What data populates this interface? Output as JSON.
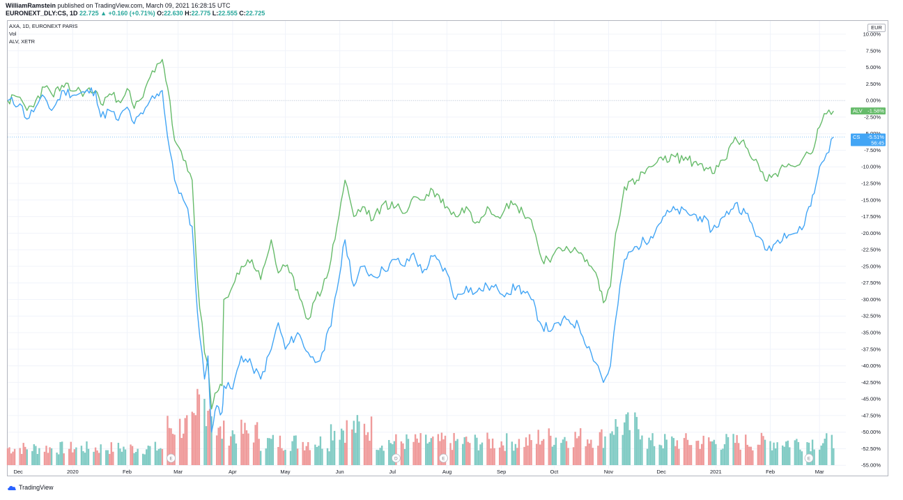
{
  "header": {
    "author": "WilliamRamstein",
    "published": "published on TradingView.com, March 09, 2021 16:28:15 UTC",
    "symbol": "EURONEXT_DLY:CS, 1D",
    "last": "22.725",
    "change": "+0.160 (+0.71%)",
    "open_label": "O:",
    "open": "22.630",
    "high_label": "H:",
    "high": "22.775",
    "low_label": "L:",
    "low": "22.555",
    "close_label": "C:",
    "close": "22.725"
  },
  "legend": [
    "AXA, 1D, EURONEXT PARIS",
    "Vol",
    "ALV, XETR"
  ],
  "currency_button": "EUR",
  "branding": "TradingView",
  "chart_data": {
    "type": "line",
    "y_unit": "%",
    "y_range": [
      -55.5,
      12
    ],
    "y_ticks": [
      10,
      7.5,
      5,
      2.5,
      0,
      -2.5,
      -5,
      -7.5,
      -10,
      -12.5,
      -15,
      -17.5,
      -20,
      -22.5,
      -25,
      -27.5,
      -30,
      -32.5,
      -35,
      -37.5,
      -40,
      -42.5,
      -45,
      -47.5,
      -50,
      -52.5,
      -55
    ],
    "x_range": [
      "2019-11-25",
      "2021-03-16"
    ],
    "x_ticks": [
      {
        "label": "Dec",
        "date": "2019-12-01"
      },
      {
        "label": "2020",
        "date": "2020-01-01"
      },
      {
        "label": "Feb",
        "date": "2020-02-01"
      },
      {
        "label": "Mar",
        "date": "2020-03-01"
      },
      {
        "label": "Apr",
        "date": "2020-04-01"
      },
      {
        "label": "May",
        "date": "2020-05-01"
      },
      {
        "label": "Jun",
        "date": "2020-06-01"
      },
      {
        "label": "Jul",
        "date": "2020-07-01"
      },
      {
        "label": "Aug",
        "date": "2020-08-01"
      },
      {
        "label": "Sep",
        "date": "2020-09-01"
      },
      {
        "label": "Oct",
        "date": "2020-10-01"
      },
      {
        "label": "Nov",
        "date": "2020-11-01"
      },
      {
        "label": "Dec",
        "date": "2020-12-01"
      },
      {
        "label": "2021",
        "date": "2021-01-01"
      },
      {
        "label": "Feb",
        "date": "2021-02-01"
      },
      {
        "label": "Mar",
        "date": "2021-03-01"
      }
    ],
    "series": [
      {
        "name": "CS",
        "color": "#42a5f5",
        "last_label": "-5.51%",
        "countdown": "56:45",
        "points": [
          [
            "2019-11-25",
            0
          ],
          [
            "2019-12-02",
            -0.5
          ],
          [
            "2019-12-06",
            -2.8
          ],
          [
            "2019-12-11",
            -1
          ],
          [
            "2019-12-16",
            0.5
          ],
          [
            "2019-12-20",
            -1.5
          ],
          [
            "2019-12-27",
            1.5
          ],
          [
            "2020-01-03",
            0.8
          ],
          [
            "2020-01-08",
            1.2
          ],
          [
            "2020-01-14",
            1.5
          ],
          [
            "2020-01-17",
            -2.5
          ],
          [
            "2020-01-22",
            -1.5
          ],
          [
            "2020-01-27",
            -3
          ],
          [
            "2020-02-01",
            -1
          ],
          [
            "2020-02-05",
            -3.5
          ],
          [
            "2020-02-10",
            -2
          ],
          [
            "2020-02-14",
            0
          ],
          [
            "2020-02-18",
            1
          ],
          [
            "2020-02-21",
            1.5
          ],
          [
            "2020-02-24",
            -5.5
          ],
          [
            "2020-02-28",
            -12
          ],
          [
            "2020-03-04",
            -15
          ],
          [
            "2020-03-09",
            -19
          ],
          [
            "2020-03-12",
            -32
          ],
          [
            "2020-03-16",
            -42
          ],
          [
            "2020-03-18",
            -38.5
          ],
          [
            "2020-03-20",
            -50
          ],
          [
            "2020-03-23",
            -46
          ],
          [
            "2020-03-26",
            -47
          ],
          [
            "2020-03-27",
            -43
          ],
          [
            "2020-04-01",
            -43.5
          ],
          [
            "2020-04-06",
            -38.5
          ],
          [
            "2020-04-12",
            -40
          ],
          [
            "2020-04-17",
            -42
          ],
          [
            "2020-04-23",
            -37.5
          ],
          [
            "2020-04-27",
            -33.5
          ],
          [
            "2020-05-01",
            -37.5
          ],
          [
            "2020-05-08",
            -35
          ],
          [
            "2020-05-14",
            -38
          ],
          [
            "2020-05-18",
            -39.5
          ],
          [
            "2020-05-22",
            -38
          ],
          [
            "2020-05-27",
            -34
          ],
          [
            "2020-06-04",
            -21
          ],
          [
            "2020-06-09",
            -28
          ],
          [
            "2020-06-14",
            -25
          ],
          [
            "2020-06-20",
            -26.5
          ],
          [
            "2020-06-26",
            -25.5
          ],
          [
            "2020-07-03",
            -24
          ],
          [
            "2020-07-08",
            -25
          ],
          [
            "2020-07-13",
            -23
          ],
          [
            "2020-07-18",
            -26
          ],
          [
            "2020-07-24",
            -23.5
          ],
          [
            "2020-08-01",
            -26
          ],
          [
            "2020-08-06",
            -30
          ],
          [
            "2020-08-12",
            -28
          ],
          [
            "2020-08-17",
            -29
          ],
          [
            "2020-08-24",
            -28
          ],
          [
            "2020-08-30",
            -28.5
          ],
          [
            "2020-09-04",
            -29
          ],
          [
            "2020-09-10",
            -28
          ],
          [
            "2020-09-18",
            -30
          ],
          [
            "2020-09-24",
            -34
          ],
          [
            "2020-09-30",
            -34.5
          ],
          [
            "2020-10-08",
            -33
          ],
          [
            "2020-10-15",
            -34
          ],
          [
            "2020-10-22",
            -38
          ],
          [
            "2020-10-26",
            -40
          ],
          [
            "2020-10-29",
            -42.5
          ],
          [
            "2020-11-02",
            -40
          ],
          [
            "2020-11-05",
            -33
          ],
          [
            "2020-11-10",
            -24
          ],
          [
            "2020-11-17",
            -22
          ],
          [
            "2020-11-25",
            -20.5
          ],
          [
            "2020-12-02",
            -17.5
          ],
          [
            "2020-12-09",
            -16.5
          ],
          [
            "2020-12-16",
            -17
          ],
          [
            "2020-12-23",
            -17.5
          ],
          [
            "2020-12-30",
            -19.5
          ],
          [
            "2021-01-06",
            -17.5
          ],
          [
            "2021-01-12",
            -15.5
          ],
          [
            "2021-01-18",
            -17
          ],
          [
            "2021-01-25",
            -20.5
          ],
          [
            "2021-01-29",
            -22.5
          ],
          [
            "2021-02-04",
            -21.5
          ],
          [
            "2021-02-09",
            -20
          ],
          [
            "2021-02-15",
            -20
          ],
          [
            "2021-02-19",
            -19.5
          ],
          [
            "2021-02-23",
            -16
          ],
          [
            "2021-02-26",
            -14
          ],
          [
            "2021-03-01",
            -10
          ],
          [
            "2021-03-05",
            -8
          ],
          [
            "2021-03-09",
            -5.51
          ]
        ]
      },
      {
        "name": "ALV",
        "color": "#66bb6a",
        "last_label": "-1.58%",
        "points": [
          [
            "2019-11-25",
            0
          ],
          [
            "2019-12-02",
            0.5
          ],
          [
            "2019-12-06",
            -1.5
          ],
          [
            "2019-12-11",
            0
          ],
          [
            "2019-12-16",
            2
          ],
          [
            "2019-12-20",
            1
          ],
          [
            "2019-12-27",
            2
          ],
          [
            "2020-01-03",
            1.5
          ],
          [
            "2020-01-08",
            1.3
          ],
          [
            "2020-01-14",
            1.5
          ],
          [
            "2020-01-17",
            -0.5
          ],
          [
            "2020-01-22",
            1
          ],
          [
            "2020-01-27",
            0
          ],
          [
            "2020-02-01",
            1.8
          ],
          [
            "2020-02-05",
            -1.2
          ],
          [
            "2020-02-10",
            0.5
          ],
          [
            "2020-02-14",
            3.5
          ],
          [
            "2020-02-18",
            5.5
          ],
          [
            "2020-02-21",
            6.2
          ],
          [
            "2020-02-24",
            2
          ],
          [
            "2020-02-28",
            -6
          ],
          [
            "2020-03-04",
            -9
          ],
          [
            "2020-03-09",
            -12
          ],
          [
            "2020-03-12",
            -27
          ],
          [
            "2020-03-16",
            -38
          ],
          [
            "2020-03-18",
            -40
          ],
          [
            "2020-03-20",
            -46.5
          ],
          [
            "2020-03-23",
            -44
          ],
          [
            "2020-03-26",
            -43
          ],
          [
            "2020-03-27",
            -30
          ],
          [
            "2020-04-01",
            -28
          ],
          [
            "2020-04-06",
            -25
          ],
          [
            "2020-04-12",
            -24
          ],
          [
            "2020-04-17",
            -27
          ],
          [
            "2020-04-23",
            -21
          ],
          [
            "2020-04-27",
            -26
          ],
          [
            "2020-05-01",
            -25
          ],
          [
            "2020-05-08",
            -28.5
          ],
          [
            "2020-05-14",
            -33
          ],
          [
            "2020-05-18",
            -30
          ],
          [
            "2020-05-22",
            -28.5
          ],
          [
            "2020-05-27",
            -24
          ],
          [
            "2020-06-04",
            -12
          ],
          [
            "2020-06-09",
            -17.5
          ],
          [
            "2020-06-14",
            -16
          ],
          [
            "2020-06-20",
            -18
          ],
          [
            "2020-06-26",
            -15.5
          ],
          [
            "2020-07-03",
            -16
          ],
          [
            "2020-07-08",
            -17
          ],
          [
            "2020-07-13",
            -14.5
          ],
          [
            "2020-07-18",
            -15
          ],
          [
            "2020-07-24",
            -13.5
          ],
          [
            "2020-08-01",
            -16
          ],
          [
            "2020-08-06",
            -17.5
          ],
          [
            "2020-08-12",
            -16
          ],
          [
            "2020-08-17",
            -18.5
          ],
          [
            "2020-08-24",
            -16
          ],
          [
            "2020-08-30",
            -17.5
          ],
          [
            "2020-09-04",
            -15.5
          ],
          [
            "2020-09-10",
            -16
          ],
          [
            "2020-09-18",
            -18
          ],
          [
            "2020-09-24",
            -24
          ],
          [
            "2020-09-30",
            -23.5
          ],
          [
            "2020-10-08",
            -22
          ],
          [
            "2020-10-15",
            -23
          ],
          [
            "2020-10-22",
            -25
          ],
          [
            "2020-10-26",
            -27
          ],
          [
            "2020-10-29",
            -30.5
          ],
          [
            "2020-11-02",
            -28
          ],
          [
            "2020-11-05",
            -20
          ],
          [
            "2020-11-10",
            -13
          ],
          [
            "2020-11-17",
            -12
          ],
          [
            "2020-11-25",
            -10
          ],
          [
            "2020-12-02",
            -9
          ],
          [
            "2020-12-09",
            -8.5
          ],
          [
            "2020-12-16",
            -9
          ],
          [
            "2020-12-23",
            -9.5
          ],
          [
            "2020-12-30",
            -11
          ],
          [
            "2021-01-06",
            -9
          ],
          [
            "2021-01-12",
            -5.5
          ],
          [
            "2021-01-18",
            -7
          ],
          [
            "2021-01-25",
            -9.5
          ],
          [
            "2021-01-29",
            -12
          ],
          [
            "2021-02-04",
            -11
          ],
          [
            "2021-02-09",
            -10
          ],
          [
            "2021-02-15",
            -10
          ],
          [
            "2021-02-19",
            -9
          ],
          [
            "2021-02-23",
            -8
          ],
          [
            "2021-02-26",
            -7
          ],
          [
            "2021-03-01",
            -4
          ],
          [
            "2021-03-05",
            -2
          ],
          [
            "2021-03-09",
            -1.58
          ]
        ]
      }
    ],
    "volume": {
      "name": "Vol",
      "up_color": "#80cbc4",
      "down_color": "#ef9a9a",
      "note": "relative volume levels (0-1) in chronological segments",
      "segments": [
        {
          "from": "2019-11-25",
          "to": "2020-02-20",
          "level": 0.22
        },
        {
          "from": "2020-02-21",
          "to": "2020-03-10",
          "level": 0.5
        },
        {
          "from": "2020-03-11",
          "to": "2020-03-20",
          "level": 0.82
        },
        {
          "from": "2020-03-21",
          "to": "2020-04-15",
          "level": 0.42
        },
        {
          "from": "2020-04-16",
          "to": "2020-05-25",
          "level": 0.3
        },
        {
          "from": "2020-05-26",
          "to": "2020-06-20",
          "level": 0.48
        },
        {
          "from": "2020-06-21",
          "to": "2020-09-20",
          "level": 0.3
        },
        {
          "from": "2020-09-21",
          "to": "2020-10-31",
          "level": 0.36
        },
        {
          "from": "2020-11-01",
          "to": "2020-11-20",
          "level": 0.5
        },
        {
          "from": "2020-11-21",
          "to": "2021-03-09",
          "level": 0.3
        }
      ]
    },
    "events": [
      {
        "label": "E",
        "date": "2020-02-26"
      },
      {
        "label": "D",
        "date": "2020-07-03"
      },
      {
        "label": "E",
        "date": "2020-07-30"
      },
      {
        "label": "E",
        "date": "2021-02-23"
      }
    ],
    "reference_line": 0,
    "grid": true
  }
}
